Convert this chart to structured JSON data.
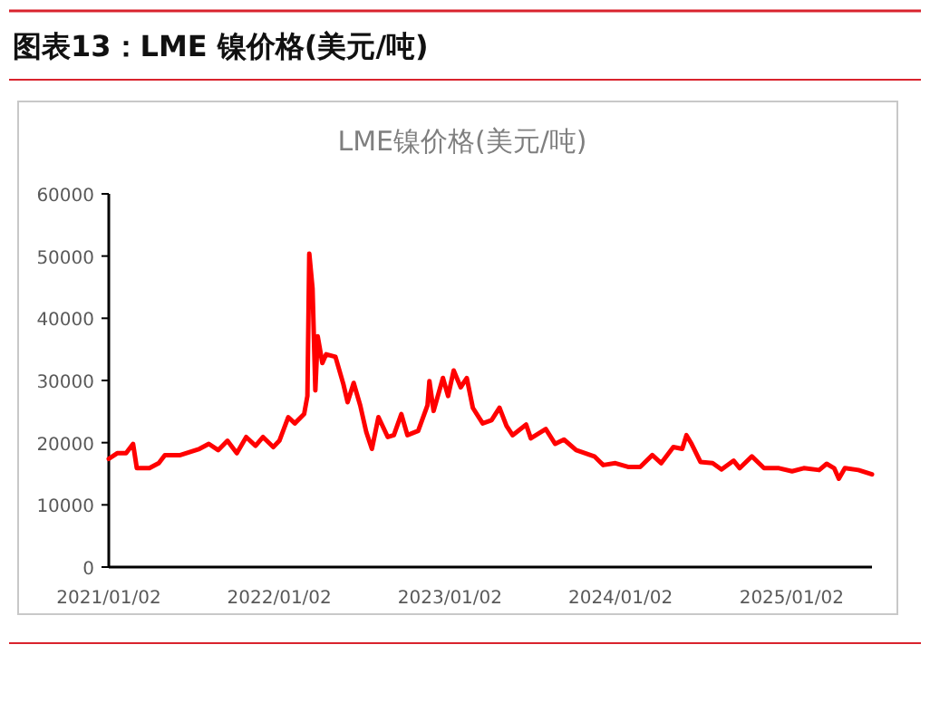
{
  "chart_data": {
    "type": "line",
    "title": "图表13：LME 镍价格(美元/吨)",
    "subtitle": "LME镍价格(美元/吨)",
    "x": [
      "2021-01-02",
      "2021-01-20",
      "2021-02-08",
      "2021-02-23",
      "2021-03-03",
      "2021-03-30",
      "2021-04-19",
      "2021-05-02",
      "2021-06-04",
      "2021-07-15",
      "2021-08-04",
      "2021-08-24",
      "2021-09-13",
      "2021-10-03",
      "2021-10-23",
      "2021-11-12",
      "2021-11-28",
      "2021-12-20",
      "2022-01-02",
      "2022-01-21",
      "2022-02-04",
      "2022-02-24",
      "2022-03-03",
      "2022-03-07",
      "2022-03-14",
      "2022-03-20",
      "2022-03-25",
      "2022-04-04",
      "2022-04-12",
      "2022-05-02",
      "2022-05-19",
      "2022-05-28",
      "2022-06-10",
      "2022-06-24",
      "2022-07-07",
      "2022-07-19",
      "2022-08-02",
      "2022-08-22",
      "2022-09-04",
      "2022-09-20",
      "2022-10-03",
      "2022-10-26",
      "2022-11-15",
      "2022-11-19",
      "2022-11-28",
      "2022-12-18",
      "2022-12-29",
      "2023-01-10",
      "2023-01-25",
      "2023-02-07",
      "2023-02-20",
      "2023-03-13",
      "2023-04-01",
      "2023-04-18",
      "2023-05-03",
      "2023-05-16",
      "2023-06-14",
      "2023-06-24",
      "2023-07-26",
      "2023-08-15",
      "2023-09-03",
      "2023-09-29",
      "2023-11-07",
      "2023-11-26",
      "2023-12-22",
      "2024-01-18",
      "2024-02-13",
      "2024-03-10",
      "2024-03-29",
      "2024-04-24",
      "2024-05-13",
      "2024-05-22",
      "2024-06-02",
      "2024-06-21",
      "2024-07-17",
      "2024-08-05",
      "2024-08-31",
      "2024-09-13",
      "2024-10-09",
      "2024-11-04",
      "2024-12-06",
      "2025-01-03",
      "2025-01-28",
      "2025-03-02",
      "2025-03-18",
      "2025-04-03",
      "2025-04-13",
      "2025-04-26",
      "2025-05-25",
      "2025-06-23"
    ],
    "series": [
      {
        "color": "#ff0000",
        "values": [
          17400,
          18300,
          18300,
          19800,
          15900,
          15900,
          16700,
          18000,
          18000,
          19000,
          19800,
          18800,
          20300,
          18300,
          20900,
          19500,
          20900,
          19300,
          20300,
          24100,
          23100,
          24600,
          27500,
          50400,
          44800,
          28400,
          37100,
          32800,
          34200,
          33800,
          29400,
          26500,
          29600,
          26000,
          21700,
          19000,
          24100,
          20900,
          21200,
          24600,
          21200,
          21900,
          26000,
          29900,
          25100,
          30400,
          27500,
          31600,
          28900,
          30400,
          25600,
          23100,
          23600,
          25600,
          22700,
          21200,
          22900,
          20700,
          22200,
          19800,
          20500,
          18800,
          17800,
          16400,
          16700,
          16100,
          16100,
          18000,
          16700,
          19300,
          19000,
          21200,
          19800,
          16900,
          16700,
          15700,
          17100,
          15900,
          17800,
          15900,
          15900,
          15400,
          15900,
          15600,
          16600,
          15900,
          14200,
          15900,
          15600,
          14900
        ]
      }
    ],
    "xlim": [
      "2021-01-02",
      "2025-06-23"
    ],
    "xticks": [
      {
        "value": "2021-01-02",
        "label": "2021/01/02"
      },
      {
        "value": "2022-01-02",
        "label": "2022/01/02"
      },
      {
        "value": "2023-01-02",
        "label": "2023/01/02"
      },
      {
        "value": "2024-01-02",
        "label": "2024/01/02"
      },
      {
        "value": "2025-01-02",
        "label": "2025/01/02"
      }
    ],
    "ylim": [
      0,
      60000
    ],
    "yticks": [
      0,
      10000,
      20000,
      30000,
      40000,
      50000,
      60000
    ],
    "grid": false,
    "marker": "none",
    "line_style": "solid"
  }
}
